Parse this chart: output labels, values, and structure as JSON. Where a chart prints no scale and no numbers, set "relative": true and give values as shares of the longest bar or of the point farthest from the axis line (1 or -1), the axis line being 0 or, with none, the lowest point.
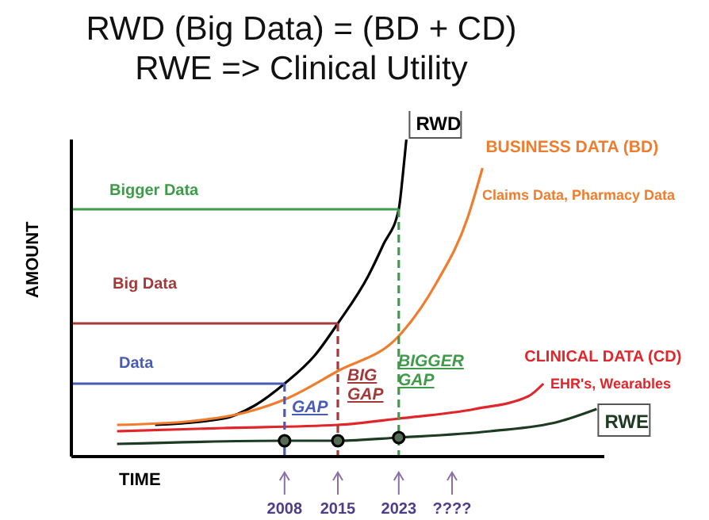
{
  "chart_data": {
    "type": "line",
    "title": "RWD (Big Data) = (BD + CD)",
    "subtitle": "RWE => Clinical Utility",
    "xlabel": "TIME",
    "ylabel": "AMOUNT",
    "relative": true,
    "legend": false,
    "tick_labels": "x",
    "xlim": [
      1980,
      2050
    ],
    "xticks": [
      2008,
      2015,
      2023,
      {
        "value": 2030,
        "label": "????"
      }
    ],
    "series": [
      {
        "name": "RWD",
        "color": "#000000",
        "x": [
          1991,
          2000,
          2004,
          2008,
          2012,
          2015,
          2019,
          2021,
          2023,
          2023.5,
          2024
        ],
        "values": [
          0.1,
          0.12,
          0.16,
          0.23,
          0.32,
          0.42,
          0.57,
          0.67,
          0.78,
          0.88,
          1.0
        ]
      },
      {
        "name": "BUSINESS DATA (BD)",
        "color": "#ef7d2d",
        "x": [
          1986,
          1995,
          2003,
          2008,
          2015,
          2023,
          2028,
          2032,
          2034
        ],
        "values": [
          0.1,
          0.11,
          0.14,
          0.18,
          0.27,
          0.38,
          0.55,
          0.75,
          0.91
        ]
      },
      {
        "name": "CLINICAL DATA (CD)",
        "color": "#e0262a",
        "x": [
          1986,
          2000,
          2015,
          2023,
          2033,
          2040,
          2042
        ],
        "values": [
          0.08,
          0.09,
          0.1,
          0.12,
          0.15,
          0.19,
          0.23
        ]
      },
      {
        "name": "RWE",
        "color": "#1d3b22",
        "x": [
          1986,
          2008,
          2015,
          2023,
          2035,
          2044,
          2049
        ],
        "values": [
          0.04,
          0.05,
          0.05,
          0.06,
          0.08,
          0.11,
          0.15
        ]
      },
      {
        "type": "scatter",
        "marker": "circle",
        "color": "#000000",
        "x": [
          2008,
          2015,
          2023
        ],
        "values": [
          0.05,
          0.05,
          0.06
        ]
      },
      {
        "name": "Data",
        "color": "#4a5bb5",
        "x": [
          1980,
          2008
        ],
        "values": [
          0.23,
          0.23
        ]
      },
      {
        "name": "Big Data",
        "color": "#a33a3a",
        "x": [
          1980,
          2015
        ],
        "values": [
          0.42,
          0.42
        ]
      },
      {
        "name": "Bigger Data",
        "color": "#3f9a4a",
        "x": [
          1980,
          2023
        ],
        "values": [
          0.78,
          0.78
        ]
      },
      {
        "color": "#4a5bb5",
        "line_style": "dashed",
        "x": [
          2008,
          2008
        ],
        "values": [
          0.23,
          0
        ]
      },
      {
        "color": "#a33a3a",
        "line_style": "dashed",
        "x": [
          2015,
          2015
        ],
        "values": [
          0.42,
          0
        ]
      },
      {
        "color": "#3f9a4a",
        "line_style": "dashed",
        "x": [
          2023,
          2023
        ],
        "values": [
          0.78,
          0
        ]
      }
    ],
    "annotations": [
      "GAP",
      "BIG GAP",
      "BIGGER GAP",
      "Claims Data, Pharmacy Data",
      "EHR's, Wearables"
    ]
  }
}
